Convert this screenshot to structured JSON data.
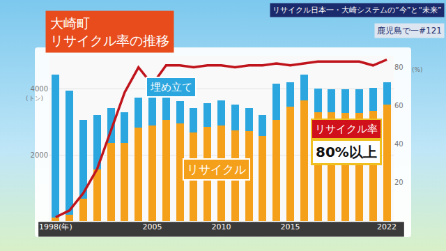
{
  "chart_data": {
    "type": "bar",
    "title": "大崎町\nリサイクル率の推移",
    "subtitle": "リサイクル日本一・大崎システムの“今”と“未来”",
    "caption": "鹿児島で一#121",
    "ylabel": "(トン)",
    "y2label": "(%)",
    "annotations": [
      "80%以上"
    ],
    "categories": [
      "1998(年)",
      null,
      null,
      null,
      null,
      null,
      null,
      "2005",
      null,
      null,
      null,
      null,
      "2010",
      null,
      null,
      null,
      null,
      "2015",
      null,
      null,
      null,
      null,
      null,
      null,
      "2022"
    ],
    "series": [
      {
        "name": "リサイクル",
        "color": "#f5a01a",
        "values": [
          100,
          200,
          670,
          1560,
          2360,
          2360,
          2820,
          2880,
          3050,
          2950,
          2670,
          2840,
          2880,
          2740,
          2720,
          2570,
          3050,
          3470,
          3660,
          3300,
          3300,
          3260,
          3260,
          3340,
          3520
        ]
      },
      {
        "name": "埋め立て",
        "color": "#2ba6de",
        "values": [
          4320,
          3740,
          2380,
          1640,
          1050,
          940,
          910,
          850,
          780,
          670,
          740,
          720,
          780,
          780,
          690,
          630,
          1100,
          720,
          760,
          700,
          680,
          720,
          720,
          700,
          670
        ]
      },
      {
        "name": "リサイクル率",
        "type": "line",
        "axis": "y2",
        "color": "#c0141c",
        "values": [
          2,
          5.5,
          14.5,
          27,
          47,
          67,
          80,
          71,
          81,
          81,
          80,
          81,
          81,
          80,
          81,
          81,
          82,
          81,
          82,
          83,
          83,
          83,
          83,
          81,
          84
        ]
      }
    ],
    "stacked": true,
    "ylim": [
      0,
      5000
    ],
    "yticks": [
      2000,
      4000
    ],
    "y2lim": [
      0,
      86
    ],
    "y2ticks": [
      20,
      40,
      60,
      80
    ],
    "grid": true
  }
}
